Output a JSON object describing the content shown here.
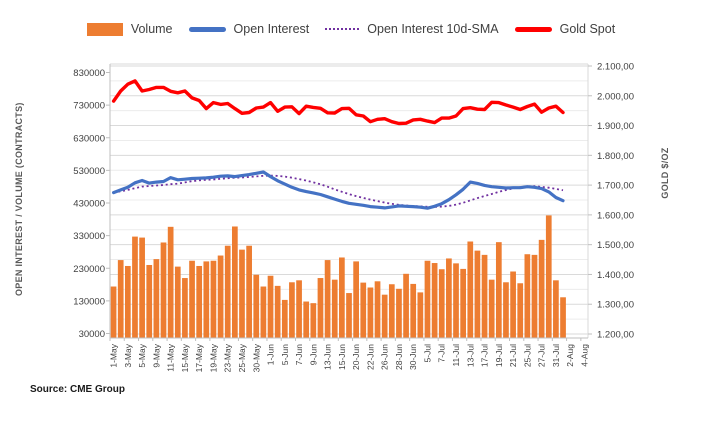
{
  "legend": {
    "items": [
      {
        "label": "Volume",
        "type": "bar",
        "color": "#ED7D31"
      },
      {
        "label": "Open Interest",
        "type": "line",
        "color": "#4472C4"
      },
      {
        "label": "Open Interest 10d-SMA",
        "type": "dotted",
        "color": "#7030A0"
      },
      {
        "label": "Gold Spot",
        "type": "line",
        "color": "#FF0000"
      }
    ]
  },
  "axes": {
    "left_title": "OPEN INTEREST / VOLUME (CONTRACTS)",
    "right_title": "GOLD $/OZ",
    "left_ticks": [
      {
        "value": 830000,
        "label": "830000"
      },
      {
        "value": 730000,
        "label": "730000"
      },
      {
        "value": 630000,
        "label": "630000"
      },
      {
        "value": 530000,
        "label": "530000"
      },
      {
        "value": 430000,
        "label": "430000"
      },
      {
        "value": 330000,
        "label": "330000"
      },
      {
        "value": 230000,
        "label": "230000"
      },
      {
        "value": 130000,
        "label": "130000"
      },
      {
        "value": 30000,
        "label": "30000"
      }
    ],
    "right_ticks": [
      {
        "value": 2100,
        "label": "2.100,00"
      },
      {
        "value": 2000,
        "label": "2.000,00"
      },
      {
        "value": 1900,
        "label": "1.900,00"
      },
      {
        "value": 1800,
        "label": "1.800,00"
      },
      {
        "value": 1700,
        "label": "1.700,00"
      },
      {
        "value": 1600,
        "label": "1.600,00"
      },
      {
        "value": 1500,
        "label": "1.500,00"
      },
      {
        "value": 1400,
        "label": "1.400,00"
      },
      {
        "value": 1300,
        "label": "1.300,00"
      },
      {
        "value": 1200,
        "label": "1.200,00"
      }
    ],
    "x_labels": [
      "1-May",
      "3-May",
      "5-May",
      "9-May",
      "11-May",
      "15-May",
      "17-May",
      "19-May",
      "23-May",
      "25-May",
      "30-May",
      "1-Jun",
      "5-Jun",
      "7-Jun",
      "9-Jun",
      "13-Jun",
      "15-Jun",
      "20-Jun",
      "22-Jun",
      "26-Jun",
      "28-Jun",
      "30-Jun",
      "5-Jul",
      "7-Jul",
      "11-Jul",
      "13-Jul",
      "17-Jul",
      "19-Jul",
      "21-Jul",
      "25-Jul",
      "27-Jul",
      "31-Jul",
      "2-Aug",
      "4-Aug"
    ]
  },
  "source": "Source: CME Group",
  "chart_data": {
    "type": "combo",
    "x": [
      "1-May",
      "2-May",
      "3-May",
      "4-May",
      "5-May",
      "8-May",
      "9-May",
      "10-May",
      "11-May",
      "12-May",
      "15-May",
      "16-May",
      "17-May",
      "18-May",
      "19-May",
      "22-May",
      "23-May",
      "24-May",
      "25-May",
      "26-May",
      "30-May",
      "31-May",
      "1-Jun",
      "2-Jun",
      "5-Jun",
      "6-Jun",
      "7-Jun",
      "8-Jun",
      "9-Jun",
      "12-Jun",
      "13-Jun",
      "14-Jun",
      "15-Jun",
      "16-Jun",
      "20-Jun",
      "21-Jun",
      "22-Jun",
      "23-Jun",
      "26-Jun",
      "27-Jun",
      "28-Jun",
      "29-Jun",
      "30-Jun",
      "3-Jul",
      "5-Jul",
      "6-Jul",
      "7-Jul",
      "10-Jul",
      "11-Jul",
      "12-Jul",
      "13-Jul",
      "14-Jul",
      "17-Jul",
      "18-Jul",
      "19-Jul",
      "20-Jul",
      "21-Jul",
      "24-Jul",
      "25-Jul",
      "26-Jul",
      "27-Jul",
      "28-Jul",
      "31-Jul",
      "1-Aug"
    ],
    "x_slots_total": 67,
    "series": [
      {
        "name": "Volume",
        "type": "bar",
        "axis": "left",
        "color": "#ED7D31",
        "values": [
          174000,
          255000,
          237000,
          327000,
          324000,
          240000,
          258000,
          309000,
          357000,
          235000,
          200000,
          253000,
          237000,
          251000,
          253000,
          269000,
          299000,
          358000,
          287000,
          299000,
          210000,
          174000,
          207000,
          176000,
          133000,
          187000,
          193000,
          128000,
          123000,
          200000,
          255000,
          195000,
          263000,
          154000,
          251000,
          186000,
          171000,
          190000,
          149000,
          181000,
          167000,
          213000,
          182000,
          156000,
          253000,
          246000,
          227000,
          260000,
          245000,
          228000,
          312000,
          284000,
          271000,
          195000,
          310000,
          187000,
          220000,
          184000,
          273000,
          271000,
          317000,
          392000,
          193000,
          141000
        ]
      },
      {
        "name": "Open Interest",
        "type": "line",
        "axis": "left",
        "color": "#4472C4",
        "values": [
          462000,
          470000,
          478000,
          492000,
          499000,
          491000,
          494000,
          496000,
          508000,
          501000,
          503000,
          505000,
          506000,
          507000,
          509000,
          512000,
          513000,
          511000,
          514000,
          517000,
          521000,
          525000,
          511000,
          498000,
          488000,
          478000,
          470000,
          465000,
          461000,
          456000,
          449000,
          442000,
          435000,
          429000,
          426000,
          423000,
          419000,
          417000,
          415000,
          418000,
          421000,
          420000,
          419000,
          417000,
          414000,
          420000,
          428000,
          440000,
          455000,
          472000,
          494000,
          490000,
          484000,
          480000,
          478000,
          476000,
          477000,
          477000,
          480000,
          478000,
          474000,
          464000,
          447000,
          437000
        ]
      },
      {
        "name": "Open Interest 10d-SMA",
        "type": "dotted-line",
        "axis": "left",
        "color": "#7030A0",
        "derived_from": "Open Interest",
        "sma_window": 10
      },
      {
        "name": "Gold Spot",
        "type": "line",
        "axis": "right",
        "color": "#FF0000",
        "values": [
          1982,
          2016,
          2039,
          2050,
          2016,
          2021,
          2028,
          2028,
          2015,
          2010,
          2016,
          1993,
          1984,
          1957,
          1977,
          1971,
          1974,
          1957,
          1941,
          1944,
          1959,
          1962,
          1977,
          1948,
          1962,
          1963,
          1940,
          1965,
          1961,
          1958,
          1943,
          1942,
          1957,
          1958,
          1936,
          1932,
          1913,
          1921,
          1923,
          1913,
          1907,
          1908,
          1919,
          1921,
          1915,
          1910,
          1925,
          1925,
          1932,
          1957,
          1960,
          1955,
          1954,
          1978,
          1977,
          1969,
          1962,
          1954,
          1964,
          1972,
          1945,
          1959,
          1965,
          1944
        ]
      }
    ],
    "left_axis": {
      "min": 30000,
      "max": 830000,
      "tick_step": 100000
    },
    "right_axis": {
      "min": 1200,
      "max": 2100,
      "tick_step": 100,
      "gridline_step": 50
    },
    "grid": true,
    "legend_position": "top"
  }
}
